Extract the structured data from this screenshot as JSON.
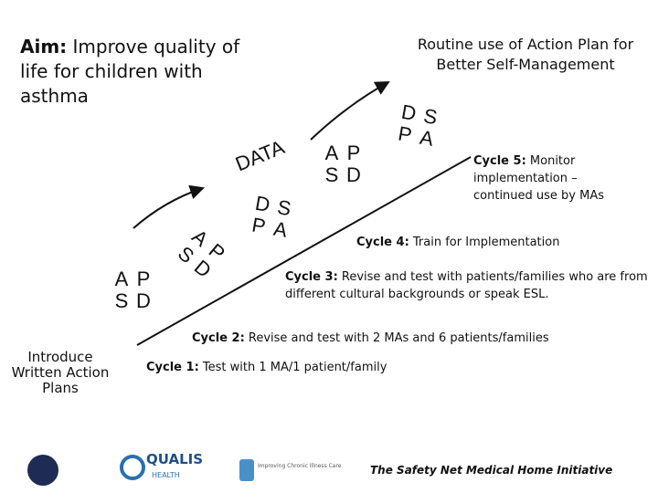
{
  "aim": {
    "label": "Aim:",
    "text": "Improve quality of life for children with asthma"
  },
  "goal": "Routine use of Action Plan for Better Self-Management",
  "start": "Introduce Written Action Plans",
  "data_label": "DATA",
  "wheels": [
    [
      "A",
      "P",
      "S",
      "D"
    ],
    [
      "A",
      "P",
      "S",
      "D"
    ],
    [
      "D",
      "S",
      "P",
      "A"
    ],
    [
      "A",
      "P",
      "S",
      "D"
    ],
    [
      "D",
      "S",
      "P",
      "A"
    ]
  ],
  "cycles": [
    {
      "label": "Cycle 1:",
      "text": "Test with 1 MA/1 patient/family"
    },
    {
      "label": "Cycle 2:",
      "text": "Revise and test with 2 MAs and 6 patients/families"
    },
    {
      "label": "Cycle 3:",
      "text": "Revise and test with patients/families who are from different cultural backgrounds or speak ESL."
    },
    {
      "label": "Cycle 4:",
      "text": "Train for Implementation"
    },
    {
      "label": "Cycle 5:",
      "text": "Monitor implementation – continued use by MAs"
    }
  ],
  "footer": {
    "qualis": "QUALIS",
    "qualis_sub": "HEALTH",
    "icic": "Improving Chronic Illness Care",
    "initiative": "The Safety Net Medical Home Initiative"
  }
}
